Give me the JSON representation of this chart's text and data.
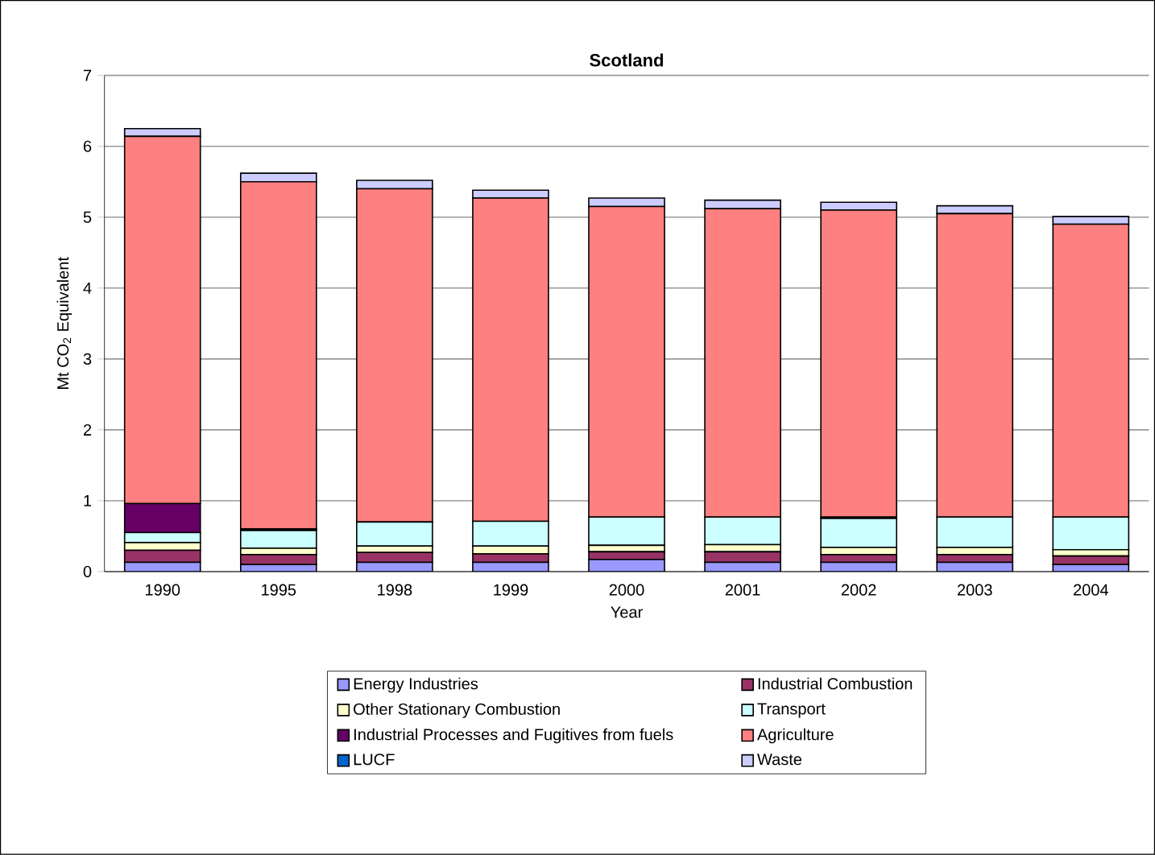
{
  "chart_data": {
    "type": "bar",
    "stacked": true,
    "title": "Scotland",
    "xlabel": "Year",
    "ylabel": "Mt CO$_{2}$ Equivalent",
    "categories": [
      "1990",
      "1995",
      "1998",
      "1999",
      "2000",
      "2001",
      "2002",
      "2003",
      "2004"
    ],
    "ylim": [
      0,
      7
    ],
    "yticks": [
      0,
      1,
      2,
      3,
      4,
      5,
      6,
      7
    ],
    "grid": "y",
    "legend": "bottom",
    "series": [
      {
        "name": "Energy Industries",
        "color": "#9999ff",
        "values": [
          0.13,
          0.1,
          0.13,
          0.13,
          0.17,
          0.13,
          0.13,
          0.13,
          0.1
        ]
      },
      {
        "name": "Industrial Combustion",
        "color": "#993366",
        "values": [
          0.17,
          0.14,
          0.14,
          0.12,
          0.11,
          0.15,
          0.11,
          0.11,
          0.12
        ]
      },
      {
        "name": "Other Stationary Combustion",
        "color": "#ffffcc",
        "values": [
          0.11,
          0.09,
          0.09,
          0.11,
          0.09,
          0.1,
          0.1,
          0.1,
          0.09
        ]
      },
      {
        "name": "Transport",
        "color": "#ccffff",
        "values": [
          0.14,
          0.25,
          0.34,
          0.35,
          0.4,
          0.39,
          0.41,
          0.43,
          0.46
        ]
      },
      {
        "name": "Industrial Processes and Fugitives from fuels",
        "color": "#660066",
        "values": [
          0.41,
          0.02,
          0,
          0,
          0,
          0,
          0.02,
          0,
          0
        ]
      },
      {
        "name": "Agriculture",
        "color": "#ff8080",
        "values": [
          5.18,
          4.9,
          4.7,
          4.56,
          4.38,
          4.35,
          4.33,
          4.28,
          4.13
        ]
      },
      {
        "name": "LUCF",
        "color": "#0066cc",
        "values": [
          0,
          0,
          0,
          0,
          0,
          0,
          0,
          0,
          0
        ]
      },
      {
        "name": "Waste",
        "color": "#ccccff",
        "values": [
          0.11,
          0.12,
          0.12,
          0.11,
          0.12,
          0.12,
          0.11,
          0.11,
          0.11
        ]
      }
    ]
  }
}
